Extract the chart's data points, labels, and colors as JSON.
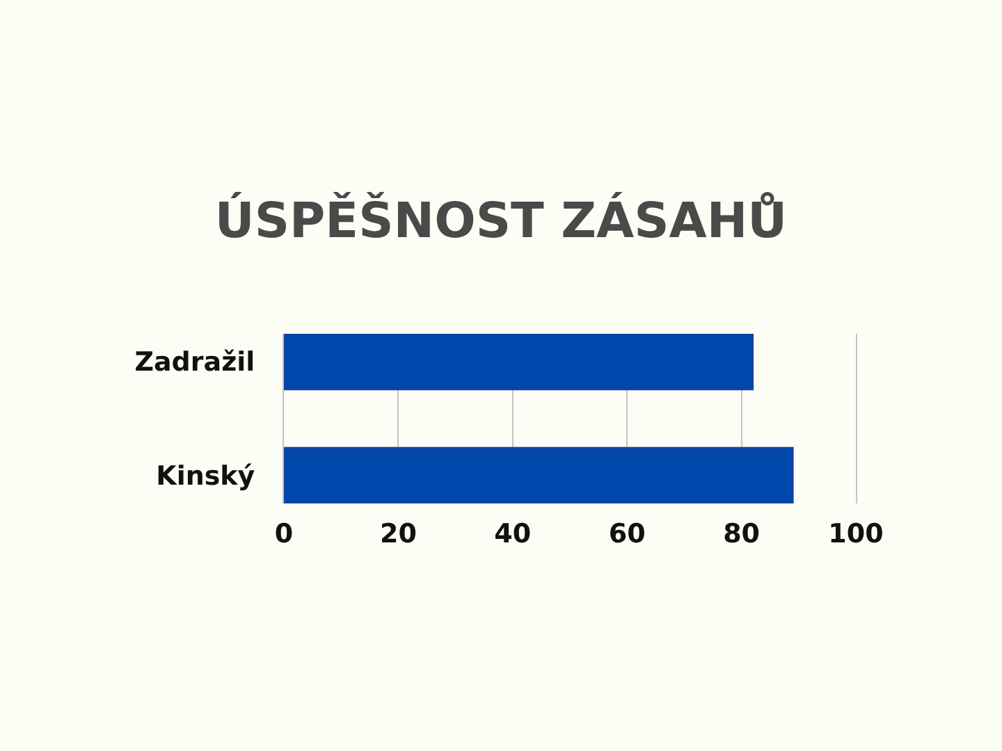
{
  "chart_data": {
    "type": "bar",
    "orientation": "horizontal",
    "title": "ÚSPĚŠNOST ZÁSAHŮ",
    "categories": [
      "Zadražil",
      "Kinský"
    ],
    "values": [
      82,
      89
    ],
    "color": "#0047ab",
    "xlim": [
      0,
      100
    ],
    "xticks": [
      0,
      20,
      40,
      60,
      80,
      100
    ],
    "grid": "x"
  }
}
